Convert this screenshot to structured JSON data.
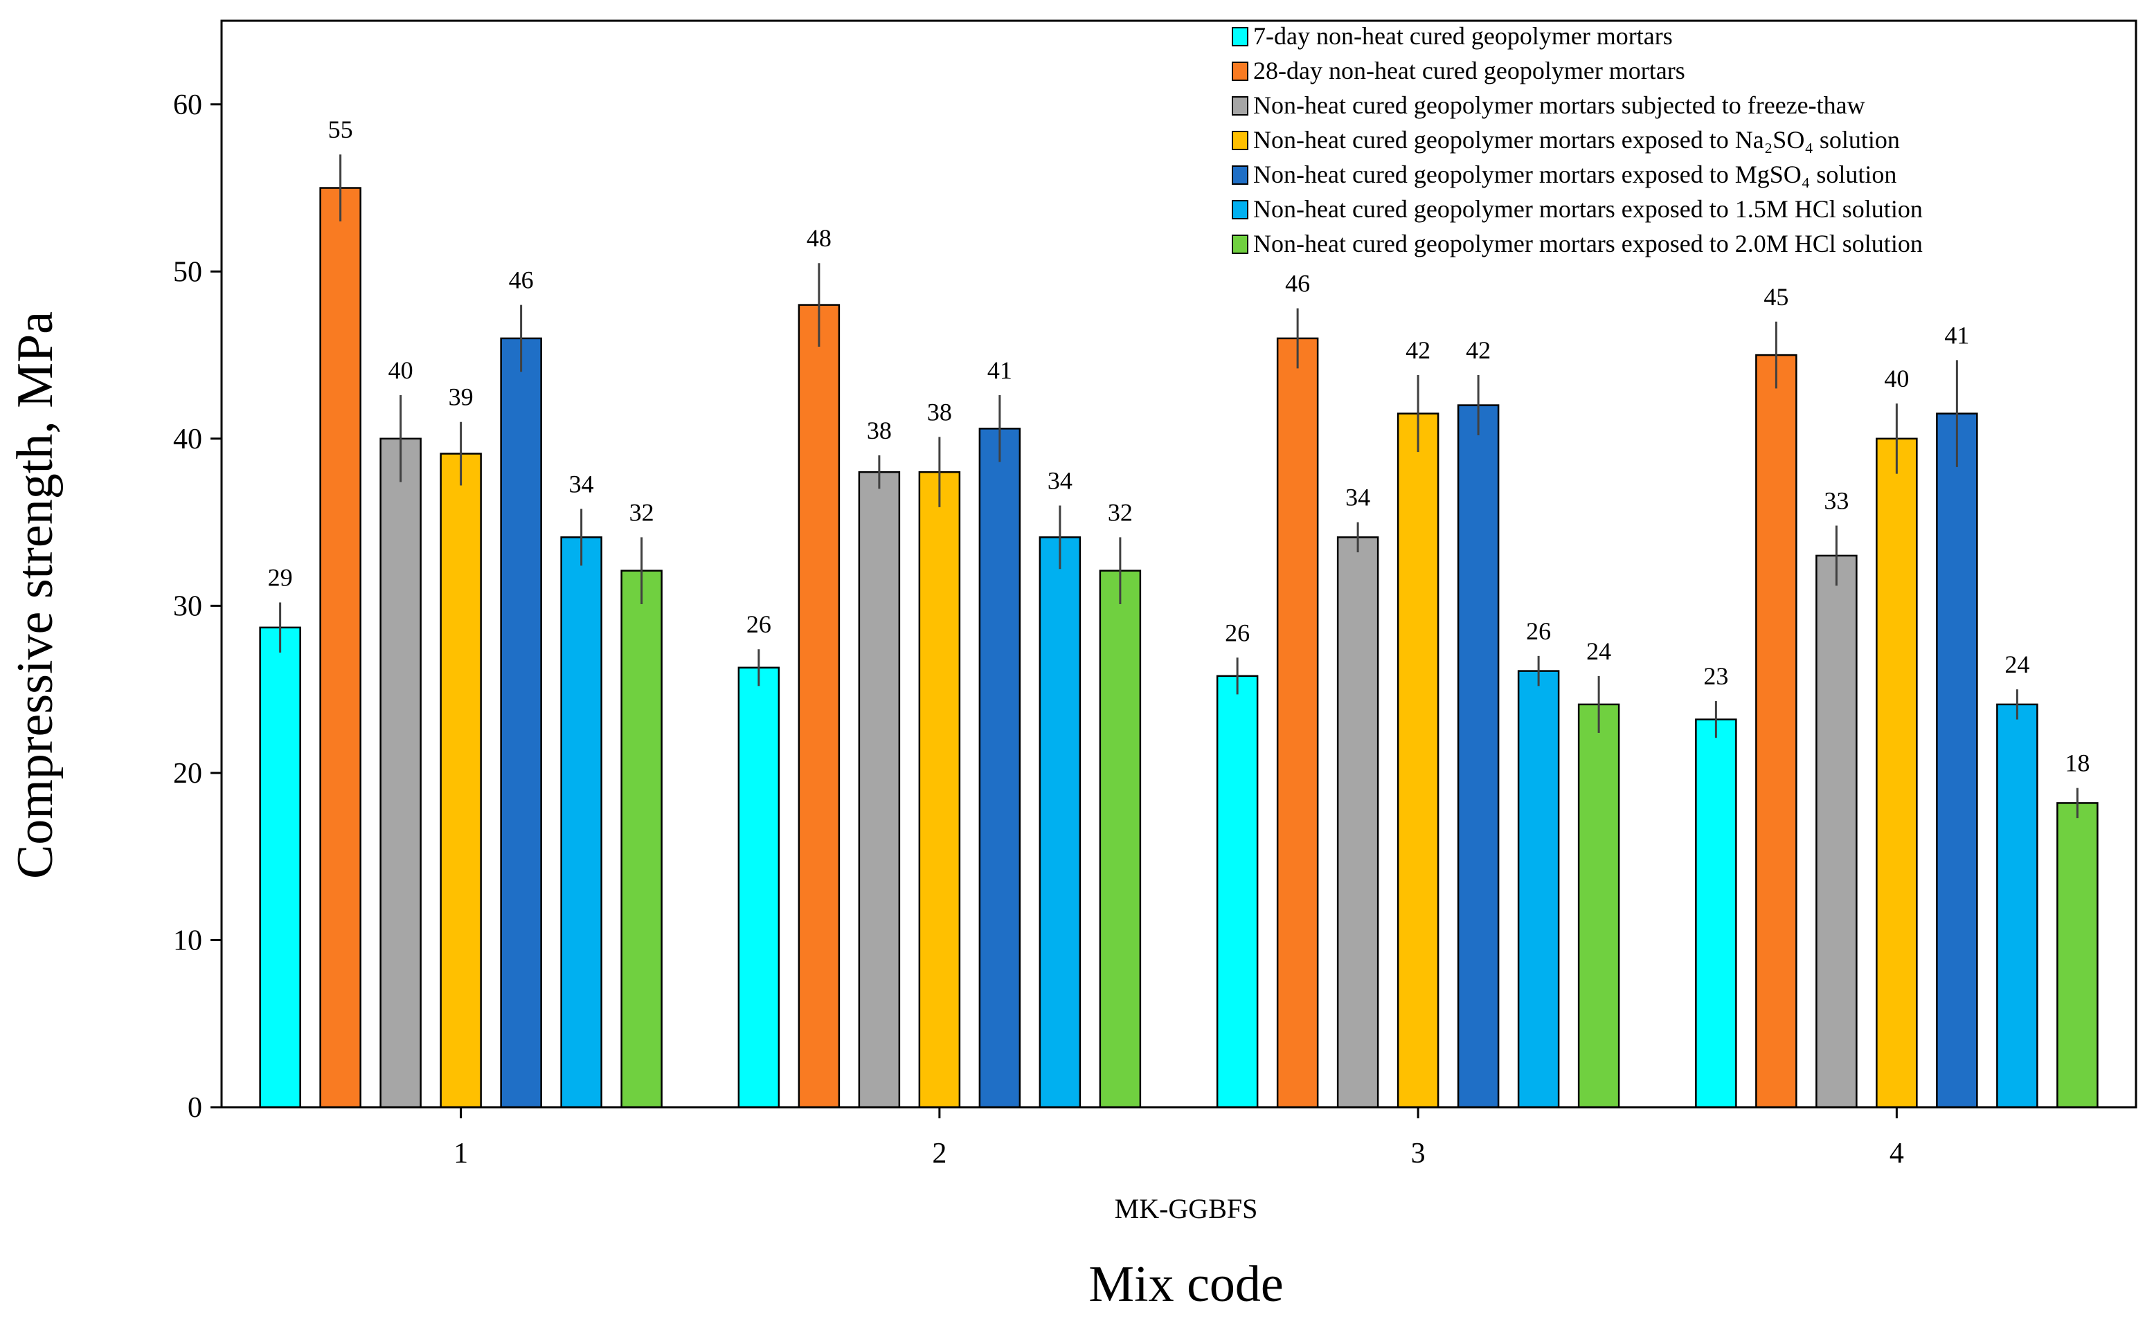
{
  "chart_data": {
    "type": "bar",
    "title": "",
    "xlabel": "Mix code",
    "x_sublabel": "MK-GGBFS",
    "ylabel": "Compressive strength, MPa",
    "ylim": [
      0,
      65
    ],
    "yticks": [
      0,
      10,
      20,
      30,
      40,
      50,
      60
    ],
    "grid": false,
    "legend_position": "top-right",
    "categories": [
      "1",
      "2",
      "3",
      "4"
    ],
    "series": [
      {
        "name": "7-day non-heat cured geopolymer mortars",
        "color": "#00FFFF",
        "values": [
          28.7,
          26.3,
          25.8,
          23.2
        ],
        "errors": [
          1.5,
          1.1,
          1.1,
          1.1
        ],
        "labels": [
          "29",
          "26",
          "26",
          "23"
        ]
      },
      {
        "name": "28-day non-heat cured geopolymer mortars",
        "color": "#F97B22",
        "values": [
          55.0,
          48.0,
          46.0,
          45.0
        ],
        "errors": [
          2.0,
          2.5,
          1.8,
          2.0
        ],
        "labels": [
          "55",
          "48",
          "46",
          "45"
        ]
      },
      {
        "name": "Non-heat cured geopolymer mortars subjected to freeze-thaw",
        "color": "#A6A6A6",
        "values": [
          40.0,
          38.0,
          34.1,
          33.0
        ],
        "errors": [
          2.6,
          1.0,
          0.9,
          1.8
        ],
        "labels": [
          "40",
          "38",
          "34",
          "33"
        ]
      },
      {
        "name": "Non-heat cured geopolymer mortars exposed to Na₂SO₄ solution",
        "color": "#FFC000",
        "values": [
          39.1,
          38.0,
          41.5,
          40.0
        ],
        "errors": [
          1.9,
          2.1,
          2.3,
          2.1
        ],
        "labels": [
          "39",
          "38",
          "42",
          "40"
        ]
      },
      {
        "name": "Non-heat cured geopolymer mortars exposed to MgSO₄ solution",
        "color": "#1F6FC6",
        "values": [
          46.0,
          40.6,
          42.0,
          41.5
        ],
        "errors": [
          2.0,
          2.0,
          1.8,
          3.2
        ],
        "labels": [
          "46",
          "41",
          "42",
          "41"
        ]
      },
      {
        "name": "Non-heat cured geopolymer mortars exposed to 1.5M HCl solution",
        "color": "#00B0F0",
        "values": [
          34.1,
          34.1,
          26.1,
          24.1
        ],
        "errors": [
          1.7,
          1.9,
          0.9,
          0.9
        ],
        "labels": [
          "34",
          "34",
          "26",
          "24"
        ]
      },
      {
        "name": "Non-heat cured geopolymer mortars exposed to 2.0M HCl solution",
        "color": "#70D040",
        "values": [
          32.1,
          32.1,
          24.1,
          18.2
        ],
        "errors": [
          2.0,
          2.0,
          1.7,
          0.9
        ],
        "labels": [
          "32",
          "32",
          "24",
          "18"
        ]
      }
    ]
  }
}
